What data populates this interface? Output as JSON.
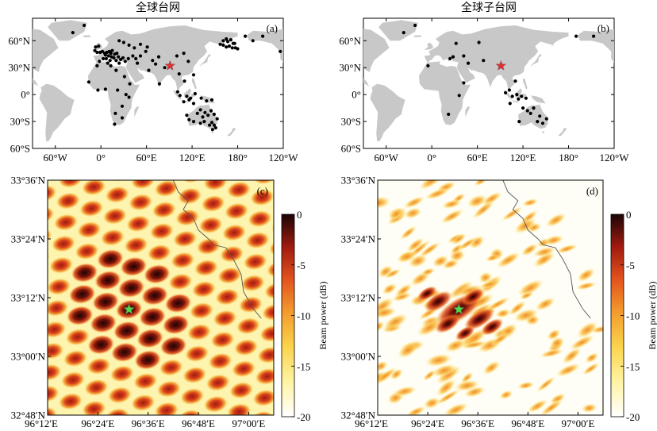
{
  "chart_data": [
    {
      "type": "map",
      "panel_label": "(a)",
      "title": "全球台网",
      "xticks": [
        "60°W",
        "0°",
        "60°E",
        "120°E",
        "180°",
        "120°W"
      ],
      "yticks": [
        "60°N",
        "30°N",
        "0°",
        "30°S",
        "60°S"
      ],
      "source_marker": {
        "lon": 91,
        "lat": 32,
        "color": "#e03030"
      },
      "station_color": "#000000",
      "stations": [
        [
          -37,
          69
        ],
        [
          -22,
          77
        ],
        [
          -3,
          54
        ],
        [
          -7,
          53
        ],
        [
          -8,
          49
        ],
        [
          -5,
          47
        ],
        [
          -1,
          47
        ],
        [
          2,
          48
        ],
        [
          5,
          46
        ],
        [
          8,
          47
        ],
        [
          11,
          48
        ],
        [
          13,
          46
        ],
        [
          15,
          49
        ],
        [
          18,
          45
        ],
        [
          21,
          46
        ],
        [
          6,
          44
        ],
        [
          10,
          43
        ],
        [
          14,
          42
        ],
        [
          17,
          41
        ],
        [
          23,
          42
        ],
        [
          3,
          40
        ],
        [
          7,
          40
        ],
        [
          12,
          38
        ],
        [
          20,
          38
        ],
        [
          26,
          39
        ],
        [
          29,
          41
        ],
        [
          -2,
          37
        ],
        [
          9,
          35
        ],
        [
          13,
          32
        ],
        [
          24,
          35
        ],
        [
          32,
          37
        ],
        [
          36,
          40
        ],
        [
          42,
          43
        ],
        [
          46,
          40
        ],
        [
          24,
          60
        ],
        [
          30,
          58
        ],
        [
          37,
          55
        ],
        [
          44,
          52
        ],
        [
          52,
          56
        ],
        [
          61,
          53
        ],
        [
          -5,
          32
        ],
        [
          20,
          27
        ],
        [
          31,
          20
        ],
        [
          38,
          12
        ],
        [
          -16,
          14
        ],
        [
          6,
          6
        ],
        [
          -4,
          5
        ],
        [
          22,
          5
        ],
        [
          33,
          0
        ],
        [
          37,
          -3
        ],
        [
          28,
          -13
        ],
        [
          19,
          -21
        ],
        [
          28,
          -26
        ],
        [
          18,
          -33
        ],
        [
          59,
          48
        ],
        [
          52,
          43
        ],
        [
          68,
          38
        ],
        [
          76,
          42
        ],
        [
          48,
          35
        ],
        [
          63,
          27
        ],
        [
          72,
          34
        ],
        [
          77,
          12
        ],
        [
          84,
          30
        ],
        [
          100,
          43
        ],
        [
          109,
          46
        ],
        [
          115,
          37
        ],
        [
          122,
          22
        ],
        [
          103,
          23
        ],
        [
          110,
          15
        ],
        [
          101,
          3
        ],
        [
          104,
          -1
        ],
        [
          113,
          -2
        ],
        [
          118,
          -4
        ],
        [
          124,
          1
        ],
        [
          116,
          -6
        ],
        [
          109,
          -8
        ],
        [
          122,
          -10
        ],
        [
          132,
          -4
        ],
        [
          139,
          -7
        ],
        [
          146,
          -6
        ],
        [
          113,
          -23
        ],
        [
          116,
          -28
        ],
        [
          122,
          -30
        ],
        [
          127,
          -21
        ],
        [
          131,
          -17
        ],
        [
          134,
          -25
        ],
        [
          137,
          -20
        ],
        [
          141,
          -23
        ],
        [
          145,
          -18
        ],
        [
          149,
          -22
        ],
        [
          136,
          -30
        ],
        [
          143,
          -34
        ],
        [
          146,
          -31
        ],
        [
          149,
          -34
        ],
        [
          153,
          -27
        ],
        [
          147,
          -39
        ],
        [
          151,
          -37
        ],
        [
          131,
          -32
        ],
        [
          157,
          56
        ],
        [
          161,
          55
        ],
        [
          165,
          53
        ],
        [
          169,
          54
        ],
        [
          173,
          52
        ],
        [
          177,
          52
        ],
        [
          180,
          51
        ],
        [
          176,
          57
        ],
        [
          171,
          61
        ],
        [
          165,
          62
        ],
        [
          167,
          59
        ],
        [
          174,
          57
        ],
        [
          161,
          60
        ],
        [
          -170,
          65
        ],
        [
          -160,
          60
        ],
        [
          -147,
          65
        ],
        [
          -124,
          48
        ]
      ]
    },
    {
      "type": "map",
      "panel_label": "(b)",
      "title": "全球子台网",
      "xticks": [
        "60°W",
        "0°",
        "60°E",
        "120°E",
        "180°",
        "120°W"
      ],
      "yticks": [
        "60°N",
        "30°N",
        "0°",
        "30°S",
        "60°S"
      ],
      "source_marker": {
        "lon": 91,
        "lat": 32,
        "color": "#e03030"
      },
      "station_color": "#000000",
      "stations": [
        [
          -37,
          69
        ],
        [
          -22,
          77
        ],
        [
          24,
          40
        ],
        [
          28,
          42
        ],
        [
          42,
          43
        ],
        [
          32,
          57
        ],
        [
          62,
          58
        ],
        [
          68,
          38
        ],
        [
          48,
          35
        ],
        [
          42,
          13
        ],
        [
          -5,
          32
        ],
        [
          36,
          -1
        ],
        [
          22,
          -22
        ],
        [
          97,
          2
        ],
        [
          102,
          5
        ],
        [
          106,
          -2
        ],
        [
          112,
          0
        ],
        [
          118,
          -2
        ],
        [
          124,
          -4
        ],
        [
          110,
          15
        ],
        [
          114,
          -5
        ],
        [
          103,
          -10
        ],
        [
          120,
          -15
        ],
        [
          126,
          -18
        ],
        [
          130,
          -21
        ],
        [
          134,
          -15
        ],
        [
          142,
          -24
        ],
        [
          146,
          -32
        ],
        [
          151,
          -27
        ],
        [
          139,
          -30
        ],
        [
          115,
          -30
        ],
        [
          -170,
          65
        ],
        [
          -147,
          65
        ]
      ]
    },
    {
      "type": "heatmap",
      "panel_label": "(c)",
      "xticks": [
        "96°12′E",
        "96°24′E",
        "96°36′E",
        "96°48′E",
        "97°00′E"
      ],
      "yticks": [
        "33°36′N",
        "33°24′N",
        "33°12′N",
        "33°00′N",
        "32°48′N"
      ],
      "colorbar": {
        "label": "Beam power (dB)",
        "min": -20,
        "max": 0,
        "ticks": [
          "0",
          "-5",
          "-10",
          "-15",
          "-20"
        ]
      },
      "peak": {
        "lon": "96°31′E",
        "lat": "33°08′N",
        "marker_color": "#4cd94c"
      },
      "border": [
        [
          96.7,
          33.6
        ],
        [
          96.72,
          33.56
        ],
        [
          96.76,
          33.53
        ],
        [
          96.74,
          33.5
        ],
        [
          96.78,
          33.47
        ],
        [
          96.8,
          33.43
        ],
        [
          96.84,
          33.4
        ],
        [
          96.86,
          33.38
        ],
        [
          96.91,
          33.37
        ],
        [
          96.94,
          33.33
        ],
        [
          96.97,
          33.28
        ],
        [
          96.98,
          33.22
        ],
        [
          97.02,
          33.16
        ],
        [
          97.05,
          33.13
        ]
      ]
    },
    {
      "type": "heatmap",
      "panel_label": "(d)",
      "xticks": [
        "96°12′E",
        "96°24′E",
        "96°36′E",
        "96°48′E",
        "97°00′E"
      ],
      "yticks": [
        "33°36′N",
        "33°24′N",
        "33°12′N",
        "33°00′N",
        "32°48′N"
      ],
      "colorbar": {
        "label": "Beam power (dB)",
        "min": -20,
        "max": 0,
        "ticks": [
          "0",
          "-5",
          "-10",
          "-15",
          "-20"
        ]
      },
      "peak": {
        "lon": "96°31′E",
        "lat": "33°09′N",
        "marker_color": "#4cd94c"
      },
      "border": [
        [
          96.7,
          33.6
        ],
        [
          96.72,
          33.56
        ],
        [
          96.76,
          33.53
        ],
        [
          96.74,
          33.5
        ],
        [
          96.78,
          33.47
        ],
        [
          96.8,
          33.43
        ],
        [
          96.84,
          33.4
        ],
        [
          96.86,
          33.38
        ],
        [
          96.91,
          33.37
        ],
        [
          96.94,
          33.33
        ],
        [
          96.97,
          33.28
        ],
        [
          96.98,
          33.22
        ],
        [
          97.02,
          33.16
        ],
        [
          97.05,
          33.13
        ]
      ]
    }
  ]
}
